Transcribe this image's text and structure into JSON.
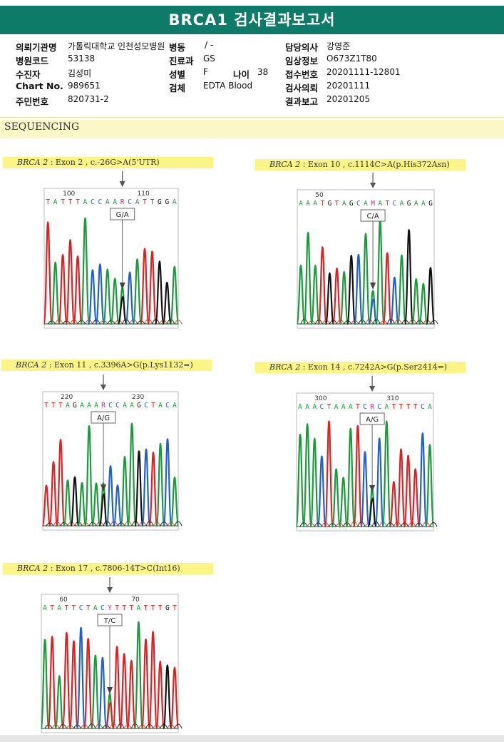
{
  "report": {
    "title": "BRCA1 검사결과보고서"
  },
  "patient": {
    "rows": [
      [
        {
          "label": "의뢰기관명",
          "value": "가톨릭대학교 인천성모병원"
        },
        {
          "label": "병동",
          "value": "/ -"
        },
        {
          "label": "",
          "value": ""
        },
        {
          "label": "담당의사",
          "value": "강영준"
        }
      ],
      [
        {
          "label": "병원코드",
          "value": "53138"
        },
        {
          "label": "진료과",
          "value": "GS"
        },
        {
          "label": "",
          "value": ""
        },
        {
          "label": "임상정보",
          "value": "O673Z1T80"
        }
      ],
      [
        {
          "label": "수진자",
          "value": "김성미"
        },
        {
          "label": "성별",
          "value": "F"
        },
        {
          "label": "나이",
          "value": "38"
        },
        {
          "label": "접수번호",
          "value": "20201111-12801"
        }
      ],
      [
        {
          "label": "Chart No.",
          "value": "989651"
        },
        {
          "label": "검체",
          "value": "EDTA Blood"
        },
        {
          "label": "",
          "value": ""
        },
        {
          "label": "검사의뢰",
          "value": "20201111"
        }
      ],
      [
        {
          "label": "주민번호",
          "value": "820731-2"
        },
        {
          "label": "",
          "value": ""
        },
        {
          "label": "",
          "value": ""
        },
        {
          "label": "결과보고",
          "value": "20201205"
        }
      ]
    ]
  },
  "sequencing": {
    "heading": "SEQUENCING",
    "variants": [
      {
        "gene": "BRCA 2",
        "desc": " : Exon 2 , c.-26G>A(5'UTR)",
        "seq": "TATTTACCAARCATTGGA",
        "pos1": "100",
        "pos2": "110",
        "call": "G/A"
      },
      {
        "gene": "BRCA 2",
        "desc": " : Exon 10 , c.1114C>A(p.His372Asn)",
        "seq": "AAATGTAGCAMATCAGAAG",
        "pos1": "50",
        "pos2": "",
        "call": "C/A"
      },
      {
        "gene": "BRCA 2",
        "desc": " : Exon 11 , c.3396A>G(p.Lys1132=)",
        "seq": "TTTAGAAARCCAAGCTACA",
        "pos1": "220",
        "pos2": "230",
        "call": "A/G"
      },
      {
        "gene": "BRCA 2",
        "desc": " : Exon 14 , c.7242A>G(p.Ser2414=)",
        "seq": "AAACTAAATCRCATTTTCA",
        "pos1": "300",
        "pos2": "310",
        "call": "A/G"
      },
      {
        "gene": "BRCA 2",
        "desc": " : Exon 17 , c.7806-14T>C(Int16)",
        "seq": "ATATTCTACYTTTATTTGT",
        "pos1": "60",
        "pos2": "70",
        "call": "T/C"
      }
    ]
  },
  "colors": {
    "header": "#0e7a68",
    "A": "#1a9a3a",
    "C": "#1f5fcf",
    "G": "#111111",
    "T": "#e02020",
    "ambiguous": "#d01fa0"
  }
}
